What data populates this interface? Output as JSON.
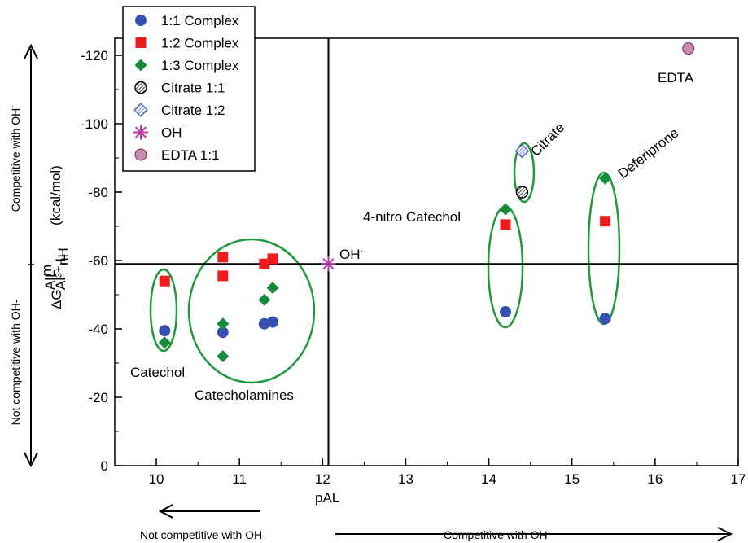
{
  "chart_data": {
    "type": "scatter",
    "title": "",
    "xlabel": "pAL",
    "ylabel": "ΔG Al³⁺,LnH (kcal/mol)",
    "xlim": [
      9.5,
      17
    ],
    "ylim": [
      0,
      -125
    ],
    "x_ticks": [
      "10",
      "11",
      "12",
      "13",
      "14",
      "15",
      "16",
      "17"
    ],
    "y_ticks": [
      "0",
      "-20",
      "-40",
      "-60",
      "-80",
      "-100",
      "-120"
    ],
    "legend_position": "top-left",
    "series": [
      {
        "name": "1:1 Complex",
        "marker": "circle",
        "color": "#3550b0",
        "points": [
          [
            10.1,
            -39.5
          ],
          [
            10.8,
            -39
          ],
          [
            11.3,
            -41.5
          ],
          [
            11.4,
            -42
          ],
          [
            14.2,
            -45
          ],
          [
            15.4,
            -43
          ]
        ]
      },
      {
        "name": "1:2 Complex",
        "marker": "square",
        "color": "#ee1c1c",
        "points": [
          [
            10.1,
            -54
          ],
          [
            10.8,
            -61
          ],
          [
            10.8,
            -55.5
          ],
          [
            11.3,
            -59
          ],
          [
            11.4,
            -60.5
          ],
          [
            14.2,
            -70.5
          ],
          [
            15.4,
            -71.5
          ]
        ]
      },
      {
        "name": "1:3 Complex",
        "marker": "diamond",
        "color": "#168b3c",
        "points": [
          [
            10.1,
            -36
          ],
          [
            10.8,
            -41.5
          ],
          [
            10.8,
            -32
          ],
          [
            11.3,
            -48.5
          ],
          [
            11.4,
            -52
          ],
          [
            14.2,
            -75
          ],
          [
            15.4,
            -84
          ]
        ]
      },
      {
        "name": "Citrate 1:1",
        "marker": "hatched-circle",
        "color": "#333333",
        "points": [
          [
            14.4,
            -80
          ]
        ]
      },
      {
        "name": "Citrate 1:2",
        "marker": "hatched-diamond",
        "color": "#7b8fe0",
        "points": [
          [
            14.4,
            -92
          ]
        ]
      },
      {
        "name": "OH-",
        "marker": "asterisk",
        "color": "#b43aa8",
        "points": [
          [
            12.07,
            -59
          ]
        ]
      },
      {
        "name": "EDTA 1:1",
        "marker": "circle",
        "color": "#c98bb0",
        "points": [
          [
            16.4,
            -122
          ]
        ]
      }
    ],
    "reference_lines": {
      "vertical_x": 12.07,
      "horizontal_y": -59
    },
    "annotations": {
      "catechol": "Catechol",
      "catecholamines": "Catecholamines",
      "nitro_catechol": "4-nitro Catechol",
      "citrate": "Citrate",
      "deferiprone": "Deferiprone",
      "edta": "EDTA",
      "oh": "OH"
    },
    "side_labels": {
      "left_upper": "Competitive with OH",
      "left_lower": "Not competitive with OH-",
      "bottom_left": "Not competitive with OH-",
      "bottom_right": "Competitive with OH"
    },
    "y_label_unit": "(kcal/mol)"
  },
  "colors": {
    "ellipse": "#1e9a3c",
    "circle_blue": "#3550b0",
    "square_red": "#ee1c1c",
    "diamond_green": "#168b3c",
    "asterisk": "#b43aa8",
    "edta": "#c98bb0"
  }
}
